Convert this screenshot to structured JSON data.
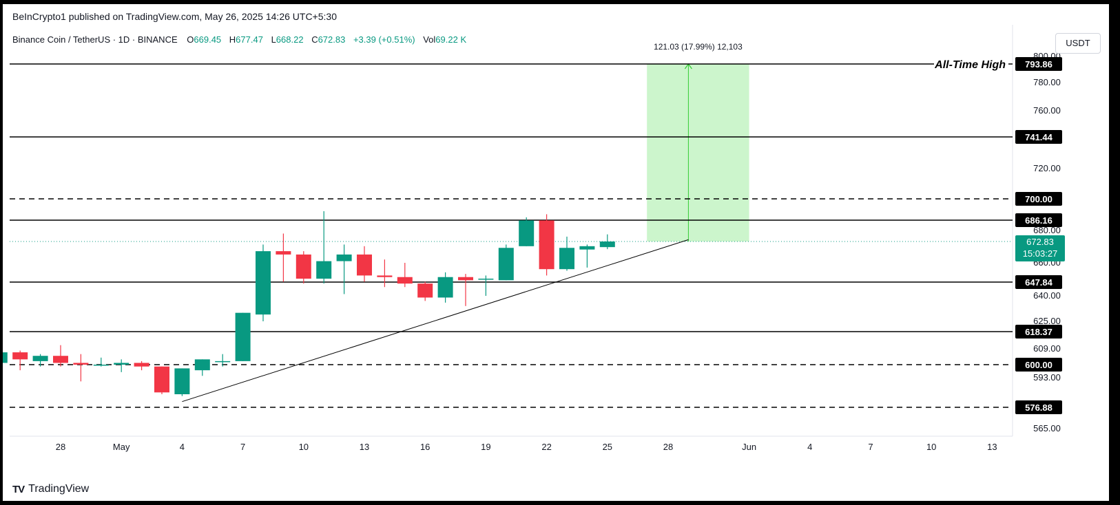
{
  "header": {
    "published": "BeInCrypto1 published on TradingView.com, May 26, 2025 14:26 UTC+5:30",
    "symbol": "Binance Coin / TetherUS · 1D · BINANCE",
    "o_label": "O",
    "o_value": "669.45",
    "h_label": "H",
    "h_value": "677.47",
    "l_label": "L",
    "l_value": "668.22",
    "c_label": "C",
    "c_value": "672.83",
    "change": "+3.39 (+0.51%)",
    "vol_label": "Vol",
    "vol_value": "69.22 K",
    "currency": "USDT"
  },
  "footer": {
    "logo_mark": "TV",
    "logo_text": "TradingView"
  },
  "chart_data": {
    "type": "candlestick",
    "colors": {
      "up": "#089981",
      "down": "#f23645",
      "projection_fill": "#ccf5cc",
      "projection_line": "#33cc33",
      "current_price_tag": "#089981"
    },
    "y_ticks": [
      "800.00",
      "780.00",
      "760.00",
      "720.00",
      "680.00",
      "660.00",
      "640.00",
      "625.00",
      "609.00",
      "593.00",
      "565.00"
    ],
    "x_ticks": [
      {
        "label": "28",
        "date": "2025-04-28"
      },
      {
        "label": "May",
        "date": "2025-05-01"
      },
      {
        "label": "4",
        "date": "2025-05-04"
      },
      {
        "label": "7",
        "date": "2025-05-07"
      },
      {
        "label": "10",
        "date": "2025-05-10"
      },
      {
        "label": "13",
        "date": "2025-05-13"
      },
      {
        "label": "16",
        "date": "2025-05-16"
      },
      {
        "label": "19",
        "date": "2025-05-19"
      },
      {
        "label": "22",
        "date": "2025-05-22"
      },
      {
        "label": "25",
        "date": "2025-05-25"
      },
      {
        "label": "28",
        "date": "2025-05-28"
      },
      {
        "label": "Jun",
        "date": "2025-06-01"
      },
      {
        "label": "4",
        "date": "2025-06-04"
      },
      {
        "label": "7",
        "date": "2025-06-07"
      },
      {
        "label": "10",
        "date": "2025-06-10"
      },
      {
        "label": "13",
        "date": "2025-06-13"
      }
    ],
    "levels": [
      {
        "value": "793.86",
        "style": "solid",
        "annotation": "All-Time High"
      },
      {
        "value": "741.44",
        "style": "solid",
        "annotation": ""
      },
      {
        "value": "700.00",
        "style": "dashed",
        "annotation": ""
      },
      {
        "value": "686.16",
        "style": "solid",
        "annotation": ""
      },
      {
        "value": "647.84",
        "style": "solid",
        "annotation": ""
      },
      {
        "value": "618.37",
        "style": "solid",
        "annotation": ""
      },
      {
        "value": "600.00",
        "style": "dashed",
        "annotation": ""
      },
      {
        "value": "576.88",
        "style": "dashed",
        "annotation": ""
      }
    ],
    "current_price": {
      "value": "672.83",
      "countdown": "15:03:27"
    },
    "projection": {
      "label": "121.03 (17.99%) 12,103",
      "from_price": 672.83,
      "to_price": 793.86,
      "start_date": "2025-05-26",
      "end_date": "2025-06-01"
    },
    "trendline": {
      "start": {
        "date": "2025-05-04",
        "price": 580
      },
      "end": {
        "date": "2025-05-29",
        "price": 674
      }
    },
    "candles": [
      {
        "date": "2025-04-25",
        "o": 601,
        "h": 609,
        "l": 601,
        "c": 607
      },
      {
        "date": "2025-04-26",
        "o": 607,
        "h": 608,
        "l": 597,
        "c": 603
      },
      {
        "date": "2025-04-27",
        "o": 602,
        "h": 606,
        "l": 599,
        "c": 605
      },
      {
        "date": "2025-04-28",
        "o": 605,
        "h": 611,
        "l": 599,
        "c": 601
      },
      {
        "date": "2025-04-29",
        "o": 601,
        "h": 606,
        "l": 591,
        "c": 600
      },
      {
        "date": "2025-04-30",
        "o": 600,
        "h": 604,
        "l": 599,
        "c": 600
      },
      {
        "date": "2025-05-01",
        "o": 600,
        "h": 603,
        "l": 596,
        "c": 601
      },
      {
        "date": "2025-05-02",
        "o": 601,
        "h": 602,
        "l": 597,
        "c": 599
      },
      {
        "date": "2025-05-03",
        "o": 599,
        "h": 599,
        "l": 584,
        "c": 585
      },
      {
        "date": "2025-05-04",
        "o": 584,
        "h": 598,
        "l": 583,
        "c": 598
      },
      {
        "date": "2025-05-05",
        "o": 597,
        "h": 603,
        "l": 594,
        "c": 603
      },
      {
        "date": "2025-05-06",
        "o": 602,
        "h": 606,
        "l": 599,
        "c": 602
      },
      {
        "date": "2025-05-07",
        "o": 602,
        "h": 630,
        "l": 602,
        "c": 630
      },
      {
        "date": "2025-05-08",
        "o": 629,
        "h": 671,
        "l": 625,
        "c": 667
      },
      {
        "date": "2025-05-09",
        "o": 667,
        "h": 678,
        "l": 648,
        "c": 665
      },
      {
        "date": "2025-05-10",
        "o": 665,
        "h": 667,
        "l": 647,
        "c": 650
      },
      {
        "date": "2025-05-11",
        "o": 650,
        "h": 692,
        "l": 647,
        "c": 661
      },
      {
        "date": "2025-05-12",
        "o": 661,
        "h": 671,
        "l": 641,
        "c": 665
      },
      {
        "date": "2025-05-13",
        "o": 665,
        "h": 670,
        "l": 648,
        "c": 652
      },
      {
        "date": "2025-05-14",
        "o": 652,
        "h": 662,
        "l": 645,
        "c": 651
      },
      {
        "date": "2025-05-15",
        "o": 651,
        "h": 660,
        "l": 645,
        "c": 647
      },
      {
        "date": "2025-05-16",
        "o": 647,
        "h": 648,
        "l": 637,
        "c": 639
      },
      {
        "date": "2025-05-17",
        "o": 639,
        "h": 654,
        "l": 636,
        "c": 651
      },
      {
        "date": "2025-05-18",
        "o": 651,
        "h": 653,
        "l": 634,
        "c": 649
      },
      {
        "date": "2025-05-19",
        "o": 650,
        "h": 652,
        "l": 640,
        "c": 650
      },
      {
        "date": "2025-05-20",
        "o": 649,
        "h": 671,
        "l": 649,
        "c": 669
      },
      {
        "date": "2025-05-21",
        "o": 670,
        "h": 688,
        "l": 670,
        "c": 686
      },
      {
        "date": "2025-05-22",
        "o": 686,
        "h": 690,
        "l": 652,
        "c": 656
      },
      {
        "date": "2025-05-23",
        "o": 656,
        "h": 676,
        "l": 655,
        "c": 669
      },
      {
        "date": "2025-05-24",
        "o": 668,
        "h": 671,
        "l": 657,
        "c": 670
      },
      {
        "date": "2025-05-25",
        "o": 669.45,
        "h": 677.47,
        "l": 668.22,
        "c": 672.83
      }
    ]
  }
}
